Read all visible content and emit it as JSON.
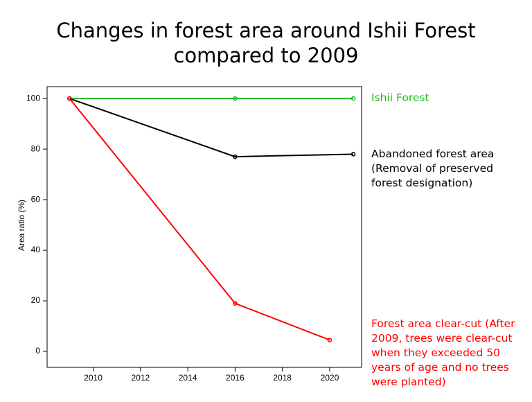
{
  "chart_data": {
    "type": "line",
    "title": "Changes in forest area around Ishii Forest compared to 2009",
    "ylabel": "Area ratio (%)",
    "xlim": [
      2008.05,
      2021.35
    ],
    "xticks": [
      2010,
      2012,
      2014,
      2016,
      2018,
      2020
    ],
    "ylim": [
      -6.3,
      104.7
    ],
    "yticks": [
      0,
      20,
      40,
      60,
      80,
      100
    ],
    "grid": false,
    "series": [
      {
        "name": "Ishii Forest",
        "color": "#22bb22",
        "x": [
          2009,
          2016,
          2021
        ],
        "values": [
          100,
          100,
          100
        ]
      },
      {
        "name": "Abandoned forest area (Removal of preserved forest designation)",
        "color": "#000000",
        "x": [
          2009,
          2016,
          2021
        ],
        "values": [
          100,
          77,
          78
        ]
      },
      {
        "name": "Forest area clear-cut (After 2009, trees were clear-cut when they exceeded 50 years of age and no trees were planted)",
        "color": "#ff0000",
        "x": [
          2009,
          2016,
          2020
        ],
        "values": [
          100,
          19,
          4.5
        ]
      }
    ]
  }
}
